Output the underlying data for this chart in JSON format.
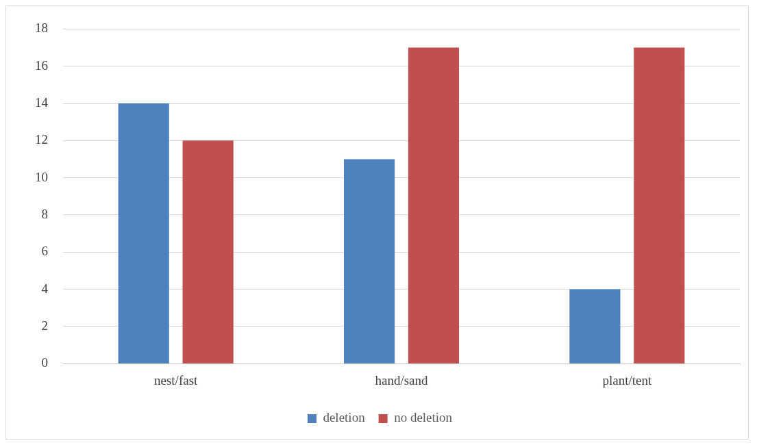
{
  "chart_data": {
    "type": "bar",
    "categories": [
      "nest/fast",
      "hand/sand",
      "plant/tent"
    ],
    "series": [
      {
        "name": "deletion",
        "color": "#4f81bd",
        "values": [
          14,
          11,
          4
        ]
      },
      {
        "name": "no deletion",
        "color": "#c0504d",
        "values": [
          12,
          17,
          17
        ]
      }
    ],
    "ylim": [
      0,
      18
    ],
    "yticks": [
      0,
      2,
      4,
      6,
      8,
      10,
      12,
      14,
      16,
      18
    ],
    "grid": "y",
    "legend": "bottom"
  }
}
